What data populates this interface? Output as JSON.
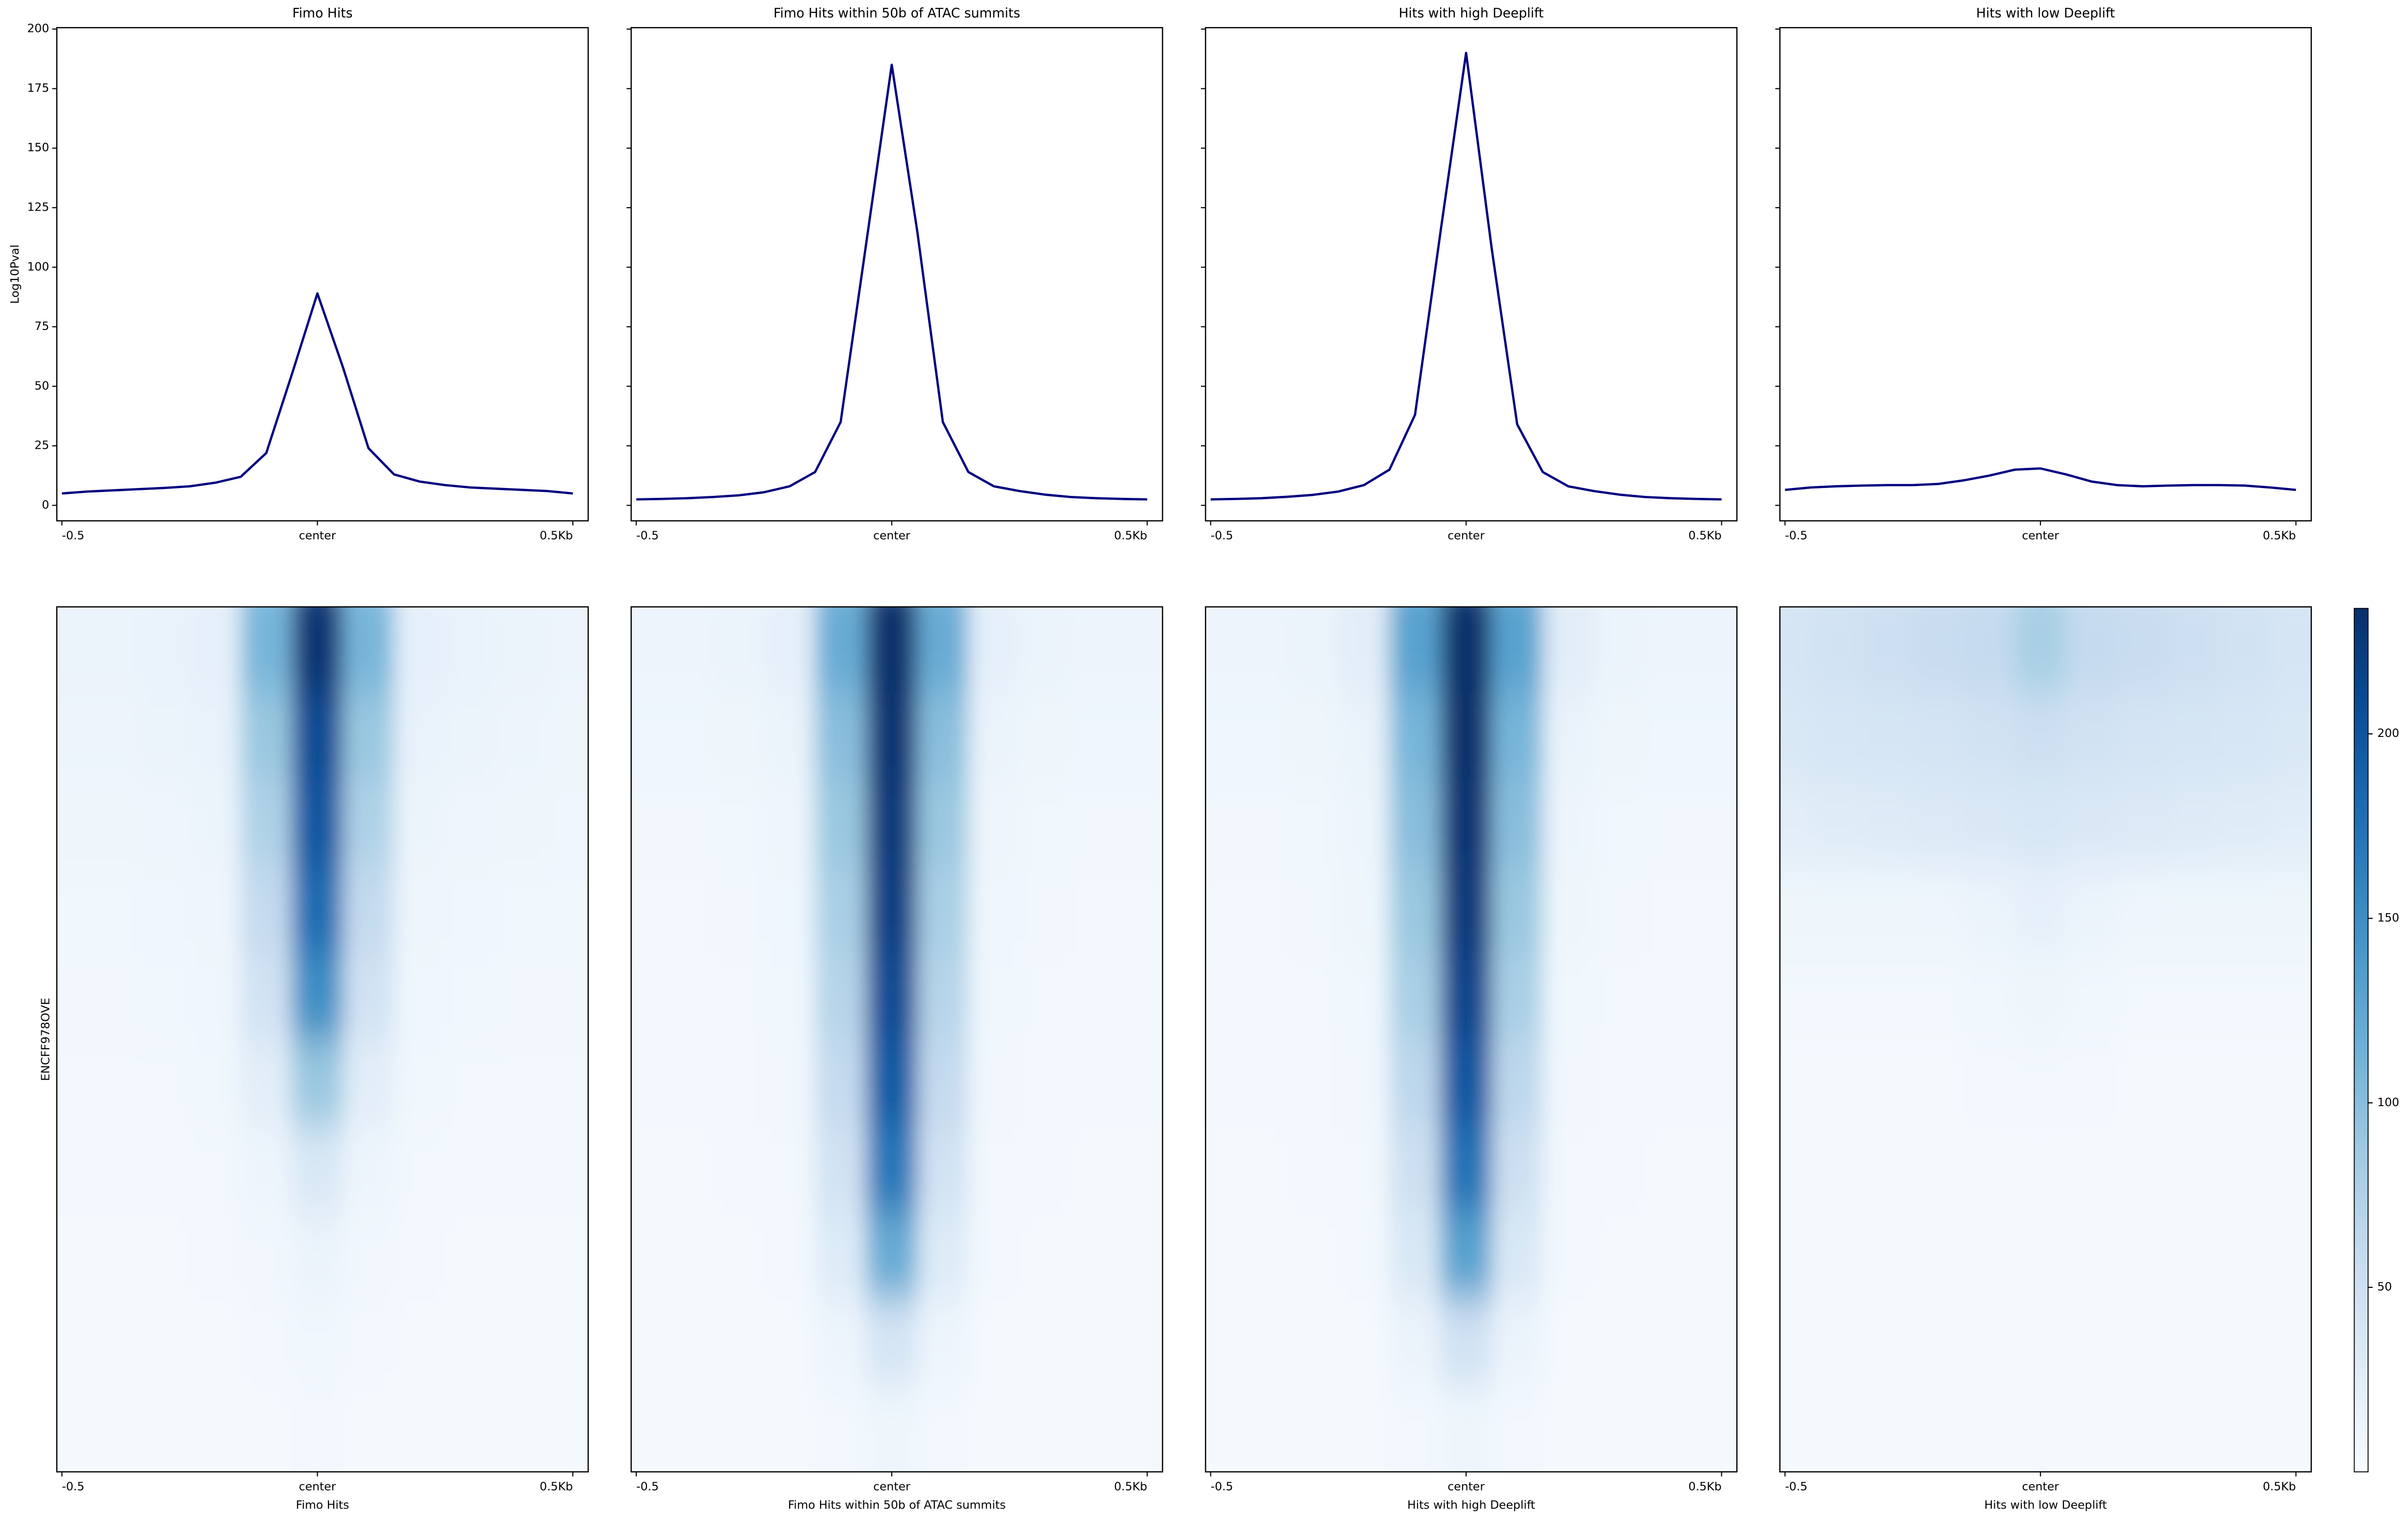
{
  "chart_data": [
    {
      "type": "line",
      "title": "Fimo Hits",
      "ylabel": "Log10Pval",
      "color": "#000080",
      "show_ytick_labels": true,
      "x": [
        -0.5,
        -0.45,
        -0.4,
        -0.35,
        -0.3,
        -0.25,
        -0.2,
        -0.15,
        -0.1,
        -0.05,
        0,
        0.05,
        0.1,
        0.15,
        0.2,
        0.25,
        0.3,
        0.35,
        0.4,
        0.45,
        0.5
      ],
      "values": [
        5,
        5.8,
        6.3,
        6.8,
        7.3,
        8,
        9.5,
        12,
        22,
        55,
        89,
        58,
        24,
        13,
        10,
        8.5,
        7.5,
        7,
        6.5,
        6,
        5
      ],
      "xlim": [
        -0.51,
        0.53
      ],
      "ylim": [
        -6.5,
        200.6
      ],
      "xticks": [
        -0.5,
        {
          "value": 0,
          "label": "center"
        },
        {
          "value": 0.5,
          "label": "0.5Kb"
        }
      ],
      "yticks": [
        0,
        25,
        50,
        75,
        100,
        125,
        150,
        175,
        200
      ]
    },
    {
      "type": "line",
      "title": "Fimo Hits within 50b of ATAC summits",
      "color": "#000080",
      "show_ytick_labels": false,
      "x": [
        -0.5,
        -0.45,
        -0.4,
        -0.35,
        -0.3,
        -0.25,
        -0.2,
        -0.15,
        -0.1,
        -0.05,
        0,
        0.05,
        0.1,
        0.15,
        0.2,
        0.25,
        0.3,
        0.35,
        0.4,
        0.45,
        0.5
      ],
      "values": [
        2.5,
        2.7,
        3,
        3.5,
        4.2,
        5.5,
        8,
        14,
        35,
        110,
        185,
        115,
        35,
        14,
        8,
        6,
        4.5,
        3.5,
        3,
        2.7,
        2.5
      ],
      "xlim": [
        -0.51,
        0.53
      ],
      "ylim": [
        -6.5,
        200.6
      ],
      "xticks": [
        -0.5,
        {
          "value": 0,
          "label": "center"
        },
        {
          "value": 0.5,
          "label": "0.5Kb"
        }
      ],
      "yticks": [
        0,
        25,
        50,
        75,
        100,
        125,
        150,
        175,
        200
      ]
    },
    {
      "type": "line",
      "title": "Hits with high Deeplift",
      "color": "#000080",
      "show_ytick_labels": false,
      "x": [
        -0.5,
        -0.45,
        -0.4,
        -0.35,
        -0.3,
        -0.25,
        -0.2,
        -0.15,
        -0.1,
        -0.05,
        0,
        0.05,
        0.1,
        0.15,
        0.2,
        0.25,
        0.3,
        0.35,
        0.4,
        0.45,
        0.5
      ],
      "values": [
        2.5,
        2.7,
        3,
        3.6,
        4.4,
        5.8,
        8.5,
        15,
        38,
        115,
        190,
        108,
        34,
        14,
        8,
        6,
        4.5,
        3.5,
        3,
        2.7,
        2.5
      ],
      "xlim": [
        -0.51,
        0.53
      ],
      "ylim": [
        -6.5,
        200.6
      ],
      "xticks": [
        -0.5,
        {
          "value": 0,
          "label": "center"
        },
        {
          "value": 0.5,
          "label": "0.5Kb"
        }
      ],
      "yticks": [
        0,
        25,
        50,
        75,
        100,
        125,
        150,
        175,
        200
      ]
    },
    {
      "type": "line",
      "title": "Hits with low Deeplift",
      "color": "#000080",
      "show_ytick_labels": false,
      "x": [
        -0.5,
        -0.45,
        -0.4,
        -0.35,
        -0.3,
        -0.25,
        -0.2,
        -0.15,
        -0.1,
        -0.05,
        0,
        0.05,
        0.1,
        0.15,
        0.2,
        0.25,
        0.3,
        0.35,
        0.4,
        0.45,
        0.5
      ],
      "values": [
        6.5,
        7.5,
        8,
        8.3,
        8.5,
        8.5,
        9,
        10.5,
        12.5,
        15,
        15.5,
        13,
        10,
        8.5,
        8,
        8.3,
        8.5,
        8.5,
        8.3,
        7.5,
        6.5
      ],
      "xlim": [
        -0.51,
        0.53
      ],
      "ylim": [
        -6.5,
        200.6
      ],
      "xticks": [
        -0.5,
        {
          "value": 0,
          "label": "center"
        },
        {
          "value": 0.5,
          "label": "0.5Kb"
        }
      ],
      "yticks": [
        0,
        25,
        50,
        75,
        100,
        125,
        150,
        175,
        200
      ]
    },
    {
      "type": "heatmap",
      "xlabel": "Fimo Hits",
      "ylabel": "ENCFF978OVE",
      "x": [
        -0.5,
        -0.4,
        -0.3,
        -0.2,
        -0.1,
        0,
        0.1,
        0.2,
        0.3,
        0.4,
        0.5
      ],
      "xlim": [
        -0.51,
        0.53
      ],
      "xticks": [
        -0.5,
        {
          "value": 0,
          "label": "center"
        },
        {
          "value": 0.5,
          "label": "0.5Kb"
        }
      ],
      "rows": [
        [
          14,
          14,
          16,
          20,
          110,
          230,
          110,
          20,
          16,
          14,
          12
        ],
        [
          12,
          12,
          14,
          16,
          90,
          210,
          90,
          16,
          14,
          12,
          10
        ],
        [
          10,
          10,
          11,
          13,
          75,
          200,
          75,
          13,
          11,
          10,
          9
        ],
        [
          8,
          8,
          9,
          11,
          60,
          180,
          60,
          11,
          9,
          8,
          8
        ],
        [
          7,
          7,
          8,
          9,
          45,
          150,
          45,
          9,
          8,
          7,
          7
        ],
        [
          6,
          6,
          6,
          8,
          25,
          90,
          25,
          8,
          6,
          6,
          6
        ],
        [
          5,
          5,
          5,
          6,
          12,
          35,
          12,
          6,
          5,
          5,
          5
        ],
        [
          4,
          4,
          4,
          5,
          7,
          14,
          7,
          5,
          4,
          4,
          4
        ],
        [
          4,
          4,
          4,
          4,
          5,
          8,
          5,
          4,
          4,
          4,
          4
        ],
        [
          3,
          3,
          3,
          3,
          4,
          5,
          4,
          3,
          3,
          3,
          3
        ]
      ]
    },
    {
      "type": "heatmap",
      "xlabel": "Fimo Hits within 50b of ATAC summits",
      "x": [
        -0.5,
        -0.4,
        -0.3,
        -0.2,
        -0.1,
        0,
        0.1,
        0.2,
        0.3,
        0.4,
        0.5
      ],
      "xlim": [
        -0.51,
        0.53
      ],
      "xticks": [
        -0.5,
        {
          "value": 0,
          "label": "center"
        },
        {
          "value": 0.5,
          "label": "0.5Kb"
        }
      ],
      "rows": [
        [
          12,
          12,
          14,
          20,
          120,
          234,
          120,
          20,
          14,
          12,
          12
        ],
        [
          9,
          9,
          10,
          14,
          100,
          230,
          100,
          14,
          10,
          9,
          9
        ],
        [
          7,
          7,
          8,
          11,
          90,
          225,
          90,
          11,
          8,
          7,
          7
        ],
        [
          6,
          6,
          7,
          9,
          80,
          220,
          80,
          9,
          7,
          6,
          6
        ],
        [
          5,
          5,
          6,
          8,
          70,
          210,
          70,
          8,
          6,
          5,
          5
        ],
        [
          5,
          5,
          5,
          7,
          60,
          195,
          60,
          7,
          5,
          5,
          5
        ],
        [
          4,
          4,
          5,
          6,
          45,
          170,
          45,
          6,
          5,
          4,
          4
        ],
        [
          4,
          4,
          4,
          5,
          30,
          120,
          30,
          5,
          4,
          4,
          4
        ],
        [
          3,
          3,
          4,
          4,
          12,
          40,
          12,
          4,
          4,
          3,
          3
        ],
        [
          3,
          3,
          3,
          3,
          5,
          10,
          5,
          3,
          3,
          3,
          3
        ]
      ]
    },
    {
      "type": "heatmap",
      "xlabel": "Hits with high Deeplift",
      "x": [
        -0.5,
        -0.4,
        -0.3,
        -0.2,
        -0.1,
        0,
        0.1,
        0.2,
        0.3,
        0.4,
        0.5
      ],
      "xlim": [
        -0.51,
        0.53
      ],
      "xticks": [
        -0.5,
        {
          "value": 0,
          "label": "center"
        },
        {
          "value": 0.5,
          "label": "0.5Kb"
        }
      ],
      "rows": [
        [
          12,
          12,
          14,
          25,
          130,
          234,
          130,
          25,
          14,
          12,
          12
        ],
        [
          9,
          9,
          10,
          15,
          110,
          234,
          110,
          15,
          10,
          9,
          9
        ],
        [
          7,
          7,
          8,
          12,
          100,
          230,
          100,
          12,
          8,
          7,
          7
        ],
        [
          6,
          6,
          7,
          10,
          90,
          225,
          90,
          10,
          7,
          6,
          6
        ],
        [
          5,
          5,
          6,
          8,
          80,
          215,
          80,
          8,
          6,
          5,
          5
        ],
        [
          5,
          5,
          5,
          7,
          65,
          200,
          65,
          7,
          5,
          5,
          5
        ],
        [
          4,
          4,
          5,
          6,
          50,
          175,
          50,
          6,
          5,
          4,
          4
        ],
        [
          4,
          4,
          4,
          5,
          35,
          130,
          35,
          5,
          4,
          4,
          4
        ],
        [
          3,
          3,
          4,
          4,
          14,
          45,
          14,
          4,
          4,
          3,
          3
        ],
        [
          3,
          3,
          3,
          3,
          5,
          10,
          5,
          3,
          3,
          3,
          3
        ]
      ]
    },
    {
      "type": "heatmap",
      "xlabel": "Hits with low Deeplift",
      "x": [
        -0.5,
        -0.4,
        -0.3,
        -0.2,
        -0.1,
        0,
        0.1,
        0.2,
        0.3,
        0.4,
        0.5
      ],
      "xlim": [
        -0.51,
        0.53
      ],
      "xticks": [
        -0.5,
        {
          "value": 0,
          "label": "center"
        },
        {
          "value": 0.5,
          "label": "0.5Kb"
        }
      ],
      "rows": [
        [
          40,
          45,
          50,
          55,
          60,
          80,
          60,
          55,
          50,
          45,
          40
        ],
        [
          35,
          38,
          40,
          42,
          45,
          50,
          45,
          42,
          40,
          38,
          35
        ],
        [
          25,
          28,
          30,
          32,
          34,
          36,
          34,
          32,
          30,
          28,
          26
        ],
        [
          10,
          10,
          10,
          11,
          14,
          20,
          14,
          11,
          10,
          10,
          10
        ],
        [
          6,
          6,
          6,
          6,
          8,
          10,
          8,
          6,
          6,
          6,
          6
        ],
        [
          4,
          4,
          4,
          4,
          5,
          6,
          5,
          4,
          4,
          4,
          4
        ],
        [
          3,
          3,
          3,
          3,
          4,
          4,
          4,
          3,
          3,
          3,
          3
        ],
        [
          3,
          3,
          3,
          3,
          3,
          3,
          3,
          3,
          3,
          3,
          3
        ],
        [
          3,
          3,
          3,
          3,
          3,
          3,
          3,
          3,
          3,
          3,
          3
        ],
        [
          3,
          3,
          3,
          3,
          3,
          3,
          3,
          3,
          3,
          3,
          3
        ]
      ]
    },
    {
      "type": "colorbar",
      "cmap": "Blues",
      "clim": [
        0,
        234
      ],
      "ticks": [
        50,
        100,
        150,
        200
      ]
    }
  ]
}
